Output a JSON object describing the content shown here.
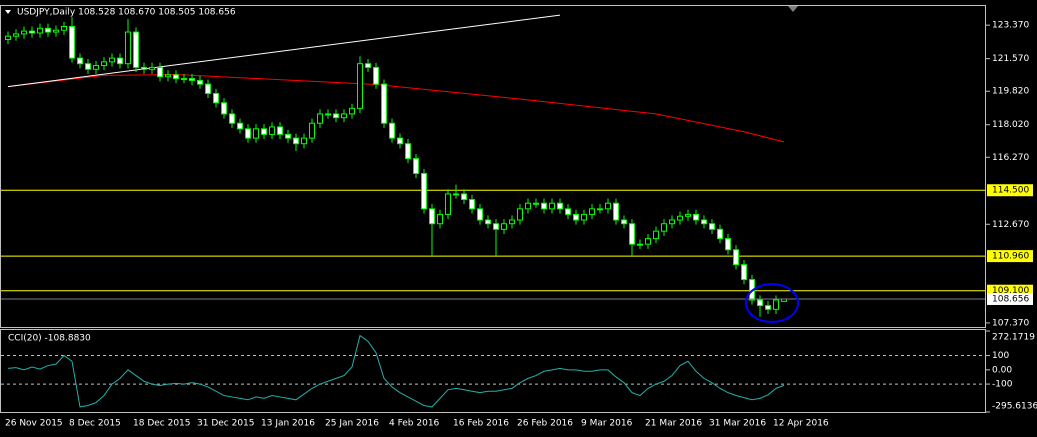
{
  "chart_data": [
    {
      "type": "candlestick",
      "title": "USDJPY,Daily  108.528 108.670 108.505 108.656",
      "categories": [
        "26 Nov 2015",
        null,
        null,
        null,
        null,
        null,
        null,
        null,
        "8 Dec 2015",
        null,
        null,
        null,
        null,
        null,
        null,
        null,
        "18 Dec 2015",
        null,
        null,
        null,
        null,
        null,
        null,
        null,
        "31 Dec 2015",
        null,
        null,
        null,
        null,
        null,
        null,
        null,
        "13 Jan 2016",
        null,
        null,
        null,
        null,
        null,
        null,
        null,
        "25 Jan 2016",
        null,
        null,
        null,
        null,
        null,
        null,
        null,
        "4 Feb 2016",
        null,
        null,
        null,
        null,
        null,
        null,
        null,
        "16 Feb 2016",
        null,
        null,
        null,
        null,
        null,
        null,
        null,
        "26 Feb 2016",
        null,
        null,
        null,
        null,
        null,
        null,
        null,
        "9 Mar 2016",
        null,
        null,
        null,
        null,
        null,
        null,
        null,
        "21 Mar 2016",
        null,
        null,
        null,
        null,
        null,
        null,
        null,
        "31 Mar 2016",
        null,
        null,
        null,
        null,
        null,
        null,
        null,
        "12 Apr 2016",
        null
      ],
      "open": [
        122.6,
        122.78,
        122.9,
        123.05,
        122.95,
        123.2,
        123.0,
        123.1,
        123.3,
        121.6,
        121.3,
        121.0,
        121.2,
        121.4,
        121.6,
        121.3,
        123.0,
        121.1,
        121.0,
        121.1,
        120.6,
        120.7,
        120.5,
        120.5,
        120.4,
        120.2,
        119.7,
        119.2,
        118.6,
        118.1,
        117.8,
        117.3,
        117.8,
        117.5,
        117.9,
        117.5,
        117.3,
        117.0,
        117.3,
        118.1,
        118.6,
        118.6,
        118.4,
        118.6,
        118.9,
        121.3,
        121.1,
        120.2,
        118.1,
        117.3,
        117.0,
        116.2,
        115.4,
        113.5,
        112.7,
        113.2,
        114.3,
        114.3,
        114.0,
        113.5,
        112.9,
        112.7,
        112.4,
        112.7,
        112.9,
        113.5,
        113.8,
        113.8,
        113.5,
        113.8,
        113.5,
        113.2,
        112.9,
        113.2,
        113.5,
        113.5,
        113.8,
        112.9,
        112.7,
        111.6,
        111.6,
        111.9,
        112.3,
        112.7,
        112.9,
        113.1,
        113.2,
        112.9,
        112.7,
        112.4,
        111.9,
        111.3,
        110.5,
        109.7,
        108.6,
        108.3,
        108.1,
        108.528
      ],
      "high": [
        123.03,
        123.15,
        123.3,
        123.3,
        123.45,
        123.45,
        123.35,
        123.55,
        123.8,
        121.85,
        121.55,
        121.45,
        121.65,
        121.85,
        121.85,
        123.7,
        123.25,
        121.35,
        121.35,
        121.35,
        120.95,
        120.95,
        120.75,
        120.75,
        120.65,
        120.45,
        119.95,
        119.45,
        118.85,
        118.35,
        118.05,
        118.05,
        118.05,
        118.15,
        118.15,
        117.75,
        117.55,
        117.55,
        118.35,
        118.85,
        118.85,
        118.85,
        118.85,
        119.15,
        121.7,
        121.55,
        121.35,
        120.45,
        118.35,
        117.55,
        117.25,
        116.45,
        115.65,
        113.75,
        113.45,
        114.55,
        114.8,
        114.55,
        114.25,
        113.75,
        113.15,
        112.95,
        112.95,
        113.15,
        113.75,
        114.05,
        114.05,
        114.05,
        114.05,
        114.05,
        113.75,
        113.45,
        113.45,
        113.75,
        113.75,
        114.05,
        114.05,
        113.15,
        112.95,
        111.85,
        112.15,
        112.55,
        112.95,
        113.15,
        113.35,
        113.45,
        113.45,
        113.15,
        112.95,
        112.65,
        112.15,
        111.55,
        110.75,
        109.95,
        108.85,
        108.55,
        108.85,
        108.67
      ],
      "low": [
        122.35,
        122.53,
        122.65,
        122.7,
        122.7,
        122.75,
        122.75,
        122.85,
        121.35,
        121.05,
        120.75,
        120.75,
        120.95,
        121.15,
        121.05,
        121.05,
        120.85,
        120.75,
        120.75,
        120.35,
        120.35,
        120.25,
        120.25,
        120.15,
        119.95,
        119.45,
        118.95,
        118.35,
        117.85,
        117.55,
        117.05,
        117.05,
        117.25,
        117.25,
        117.25,
        117.05,
        116.6,
        116.75,
        117.05,
        117.85,
        118.35,
        118.15,
        118.15,
        118.35,
        118.65,
        120.85,
        119.95,
        117.85,
        117.05,
        116.75,
        115.95,
        115.15,
        113.25,
        110.95,
        112.45,
        112.95,
        114.05,
        113.75,
        113.25,
        112.65,
        112.45,
        111.0,
        112.15,
        112.45,
        112.65,
        113.25,
        113.55,
        113.25,
        113.25,
        113.25,
        112.95,
        112.65,
        112.65,
        112.95,
        113.25,
        113.25,
        112.65,
        112.45,
        110.95,
        111.35,
        111.35,
        111.65,
        112.05,
        112.45,
        112.65,
        112.85,
        112.65,
        112.45,
        112.15,
        111.65,
        111.05,
        110.25,
        109.45,
        108.35,
        107.7,
        107.85,
        107.85,
        108.505
      ],
      "close": [
        122.78,
        122.9,
        123.05,
        122.95,
        123.2,
        123.0,
        123.1,
        123.3,
        121.6,
        121.3,
        121.0,
        121.2,
        121.4,
        121.6,
        121.3,
        123.0,
        121.1,
        121.0,
        121.1,
        120.6,
        120.7,
        120.5,
        120.5,
        120.4,
        120.2,
        119.7,
        119.2,
        118.6,
        118.1,
        117.8,
        117.3,
        117.8,
        117.5,
        117.9,
        117.5,
        117.3,
        117.0,
        117.3,
        118.1,
        118.6,
        118.6,
        118.4,
        118.6,
        118.9,
        121.3,
        121.1,
        120.2,
        118.1,
        117.3,
        117.0,
        116.2,
        115.4,
        113.5,
        112.7,
        113.2,
        114.3,
        114.3,
        114.0,
        113.5,
        112.9,
        112.7,
        112.4,
        112.7,
        112.9,
        113.5,
        113.8,
        113.8,
        113.5,
        113.8,
        113.5,
        113.2,
        112.9,
        113.2,
        113.5,
        113.5,
        113.8,
        112.9,
        112.7,
        111.6,
        111.6,
        111.9,
        112.3,
        112.7,
        112.9,
        113.1,
        113.2,
        112.9,
        112.7,
        112.4,
        111.9,
        111.3,
        110.5,
        109.7,
        108.6,
        108.3,
        108.1,
        108.6,
        108.656
      ],
      "up_color": "#000000",
      "down_color": "#ffffff",
      "wick_color": "#00ff00",
      "ylim": [
        107.15,
        124.4
      ],
      "yticks": [
        {
          "value": 123.37,
          "label": "123.370"
        },
        {
          "value": 121.57,
          "label": "121.570"
        },
        {
          "value": 119.82,
          "label": "119.820"
        },
        {
          "value": 118.02,
          "label": "118.020"
        },
        {
          "value": 116.27,
          "label": "116.270"
        },
        {
          "value": 112.67,
          "label": "112.670"
        },
        {
          "value": 107.37,
          "label": "107.370"
        }
      ],
      "levels": [
        {
          "value": 114.5,
          "label": "114.500"
        },
        {
          "value": 110.96,
          "label": "110.960"
        },
        {
          "value": 109.1,
          "label": "109.100"
        }
      ],
      "level_color": "#ffff00",
      "current_price": {
        "value": 108.656,
        "label": "108.656"
      },
      "overlays": [
        {
          "color": "#ff0000",
          "x": [
            0,
            12,
            21,
            46,
            64,
            81,
            92,
            97
          ],
          "values": [
            120.07,
            120.67,
            120.72,
            120.18,
            119.4,
            118.6,
            117.64,
            117.1
          ]
        },
        {
          "color": "#ffffff",
          "x": [
            0,
            69
          ],
          "values": [
            120.07,
            123.91
          ]
        }
      ]
    },
    {
      "type": "line",
      "title": "CCI(20) -108.8830",
      "color": "#20b2aa",
      "values": [
        10,
        15,
        0,
        20,
        5,
        30,
        40,
        100,
        60,
        -260,
        -250,
        -230,
        -180,
        -100,
        -60,
        0,
        -40,
        -80,
        -100,
        -110,
        -100,
        -95,
        -100,
        -90,
        -100,
        -120,
        -150,
        -180,
        -190,
        -200,
        -210,
        -190,
        -200,
        -180,
        -190,
        -200,
        -210,
        -170,
        -130,
        -100,
        -80,
        -60,
        -40,
        20,
        240,
        200,
        120,
        -60,
        -120,
        -160,
        -190,
        -220,
        -250,
        -260,
        -200,
        -140,
        -130,
        -140,
        -150,
        -160,
        -150,
        -150,
        -140,
        -130,
        -90,
        -60,
        -40,
        -10,
        0,
        10,
        0,
        0,
        -10,
        -10,
        0,
        0,
        -50,
        -90,
        -160,
        -180,
        -130,
        -100,
        -80,
        -40,
        30,
        60,
        -10,
        -60,
        -90,
        -130,
        -160,
        -180,
        -195,
        -210,
        -200,
        -175,
        -130,
        -108.883
      ],
      "ylim": [
        -295.6136,
        272.1719
      ],
      "yticks": [
        {
          "value": 272.1719,
          "label": "272.1719"
        },
        100,
        {
          "value": 0,
          "label": "0.00"
        },
        -100,
        {
          "value": -295.6136,
          "label": "-295.6136"
        }
      ],
      "levels": [
        100,
        -100
      ]
    }
  ]
}
